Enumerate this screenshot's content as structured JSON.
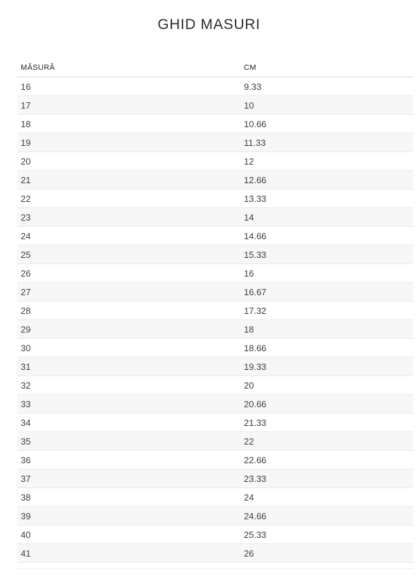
{
  "page": {
    "title": "GHID MASURI"
  },
  "table": {
    "columns": [
      {
        "key": "size",
        "label": "MĂSURĂ"
      },
      {
        "key": "cm",
        "label": "CM"
      }
    ],
    "rows": [
      {
        "size": "16",
        "cm": "9.33"
      },
      {
        "size": "17",
        "cm": "10"
      },
      {
        "size": "18",
        "cm": "10.66"
      },
      {
        "size": "19",
        "cm": "11.33"
      },
      {
        "size": "20",
        "cm": "12"
      },
      {
        "size": "21",
        "cm": "12.66"
      },
      {
        "size": "22",
        "cm": "13.33"
      },
      {
        "size": "23",
        "cm": "14"
      },
      {
        "size": "24",
        "cm": "14.66"
      },
      {
        "size": "25",
        "cm": "15.33"
      },
      {
        "size": "26",
        "cm": "16"
      },
      {
        "size": "27",
        "cm": "16.67"
      },
      {
        "size": "28",
        "cm": "17.32"
      },
      {
        "size": "29",
        "cm": "18"
      },
      {
        "size": "30",
        "cm": "18.66"
      },
      {
        "size": "31",
        "cm": "19.33"
      },
      {
        "size": "32",
        "cm": "20"
      },
      {
        "size": "33",
        "cm": "20.66"
      },
      {
        "size": "34",
        "cm": "21.33"
      },
      {
        "size": "35",
        "cm": "22"
      },
      {
        "size": "36",
        "cm": "22.66"
      },
      {
        "size": "37",
        "cm": "23.33"
      },
      {
        "size": "38",
        "cm": "24"
      },
      {
        "size": "39",
        "cm": "24.66"
      },
      {
        "size": "40",
        "cm": "25.33"
      },
      {
        "size": "41",
        "cm": "26"
      }
    ]
  },
  "colors": {
    "row_alt_bg": "#f7f7f7",
    "row_border": "#e9e9e9",
    "header_border": "#d8d8d8",
    "cell_text": "#3f3f3f",
    "title_text": "#2d2d2d"
  }
}
